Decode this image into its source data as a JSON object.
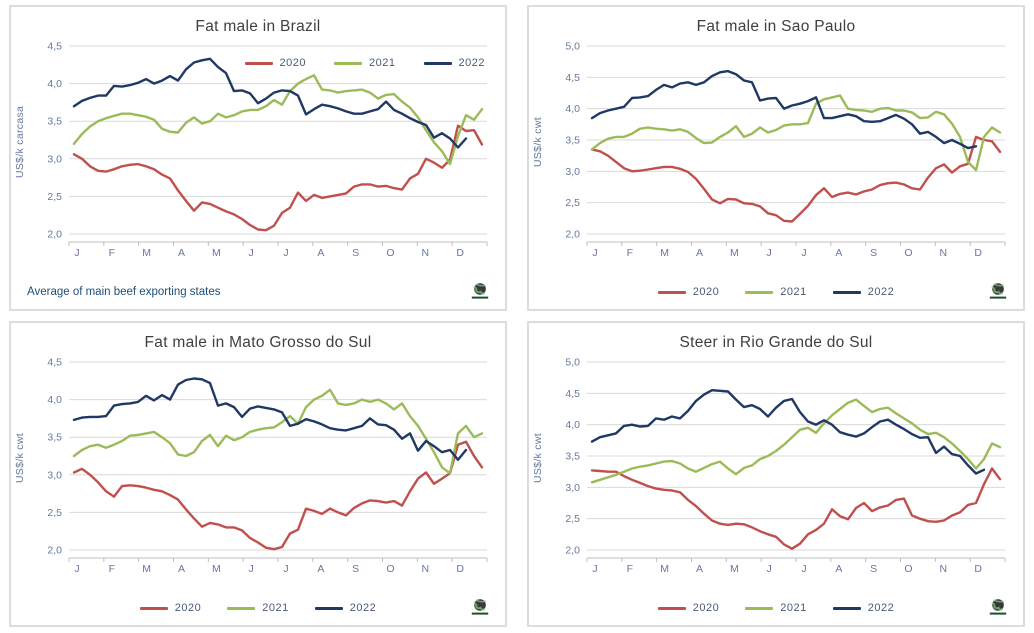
{
  "page": {
    "background": "#ffffff"
  },
  "colors": {
    "2020": "#c0504d",
    "2021": "#9bbb59",
    "2022": "#1f3864",
    "grid": "#d9d9d9",
    "axis": "#bfbfbf",
    "tick_label": "#64789c",
    "title": "#3f3f3f",
    "footnote": "#1f4e79",
    "legend_label": "#4a5a74"
  },
  "legend": {
    "labels": [
      "2020",
      "2021",
      "2022"
    ]
  },
  "chart_data": [
    {
      "type": "line",
      "title": "Fat male in Brazil",
      "ylabel": "US$/k carcasa",
      "ylim": [
        2.0,
        4.5
      ],
      "yticks": [
        "2,0",
        "2,5",
        "3,0",
        "3,5",
        "4,0",
        "4,5"
      ],
      "x_months": [
        "J",
        "F",
        "M",
        "A",
        "M",
        "J",
        "J",
        "A",
        "S",
        "O",
        "N",
        "D"
      ],
      "x_unit": "weeks",
      "grid": "horizontal",
      "legend_position": "inside-top-right",
      "footnote": "Average  of main beef exporting states",
      "series": [
        {
          "name": "2020",
          "values": [
            3.06,
            3.0,
            2.9,
            2.84,
            2.83,
            2.86,
            2.9,
            2.92,
            2.93,
            2.9,
            2.86,
            2.79,
            2.74,
            2.58,
            2.44,
            2.31,
            2.42,
            2.4,
            2.35,
            2.3,
            2.26,
            2.2,
            2.12,
            2.06,
            2.05,
            2.11,
            2.28,
            2.35,
            2.55,
            2.44,
            2.52,
            2.48,
            2.5,
            2.52,
            2.54,
            2.63,
            2.66,
            2.66,
            2.63,
            2.64,
            2.61,
            2.59,
            2.74,
            2.8,
            3.0,
            2.95,
            2.88,
            2.99,
            3.44,
            3.37,
            3.38,
            3.19
          ]
        },
        {
          "name": "2021",
          "values": [
            3.2,
            3.33,
            3.43,
            3.5,
            3.54,
            3.57,
            3.6,
            3.6,
            3.58,
            3.56,
            3.52,
            3.4,
            3.36,
            3.35,
            3.48,
            3.55,
            3.47,
            3.5,
            3.6,
            3.55,
            3.58,
            3.63,
            3.65,
            3.65,
            3.7,
            3.78,
            3.72,
            3.9,
            4.0,
            4.06,
            4.11,
            3.92,
            3.91,
            3.88,
            3.9,
            3.91,
            3.92,
            3.88,
            3.8,
            3.85,
            3.86,
            3.76,
            3.68,
            3.55,
            3.38,
            3.22,
            3.1,
            2.93,
            3.3,
            3.58,
            3.52,
            3.66
          ]
        },
        {
          "name": "2022",
          "values": [
            3.7,
            3.77,
            3.81,
            3.84,
            3.84,
            3.97,
            3.96,
            3.98,
            4.01,
            4.06,
            4.0,
            4.04,
            4.1,
            4.04,
            4.19,
            4.28,
            4.31,
            4.33,
            4.22,
            4.14,
            3.9,
            3.91,
            3.87,
            3.74,
            3.8,
            3.88,
            3.91,
            3.9,
            3.84,
            3.59,
            3.66,
            3.72,
            3.7,
            3.67,
            3.63,
            3.6,
            3.6,
            3.63,
            3.66,
            3.76,
            3.65,
            3.6,
            3.54,
            3.49,
            3.45,
            3.28,
            3.34,
            3.27,
            3.15,
            3.27
          ]
        }
      ]
    },
    {
      "type": "line",
      "title": "Fat male in Sao Paulo",
      "ylabel": "US$/k cwt",
      "ylim": [
        2.0,
        5.0
      ],
      "yticks": [
        "2,0",
        "2,5",
        "3,0",
        "3,5",
        "4,0",
        "4,5",
        "5,0"
      ],
      "x_months": [
        "J",
        "F",
        "M",
        "A",
        "M",
        "J",
        "J",
        "A",
        "S",
        "O",
        "N",
        "D"
      ],
      "x_unit": "weeks",
      "grid": "horizontal",
      "legend_position": "bottom",
      "footnote": "",
      "series": [
        {
          "name": "2020",
          "values": [
            3.35,
            3.32,
            3.25,
            3.15,
            3.05,
            3.0,
            3.01,
            3.03,
            3.05,
            3.07,
            3.07,
            3.04,
            2.99,
            2.88,
            2.72,
            2.55,
            2.49,
            2.56,
            2.55,
            2.49,
            2.48,
            2.44,
            2.33,
            2.3,
            2.21,
            2.2,
            2.32,
            2.45,
            2.62,
            2.73,
            2.59,
            2.64,
            2.66,
            2.63,
            2.68,
            2.71,
            2.78,
            2.81,
            2.82,
            2.79,
            2.73,
            2.71,
            2.9,
            3.05,
            3.11,
            2.98,
            3.08,
            3.12,
            3.55,
            3.5,
            3.48,
            3.31
          ]
        },
        {
          "name": "2021",
          "values": [
            3.35,
            3.45,
            3.52,
            3.55,
            3.55,
            3.6,
            3.68,
            3.7,
            3.68,
            3.67,
            3.65,
            3.67,
            3.63,
            3.53,
            3.45,
            3.46,
            3.55,
            3.62,
            3.72,
            3.55,
            3.6,
            3.7,
            3.62,
            3.66,
            3.73,
            3.75,
            3.75,
            3.77,
            4.08,
            4.15,
            4.18,
            4.21,
            4.0,
            3.98,
            3.97,
            3.95,
            4.0,
            4.01,
            3.97,
            3.97,
            3.94,
            3.85,
            3.86,
            3.95,
            3.91,
            3.76,
            3.55,
            3.15,
            3.02,
            3.55,
            3.7,
            3.62
          ]
        },
        {
          "name": "2022",
          "values": [
            3.85,
            3.93,
            3.97,
            4.0,
            4.03,
            4.17,
            4.18,
            4.2,
            4.3,
            4.38,
            4.34,
            4.4,
            4.42,
            4.38,
            4.42,
            4.52,
            4.58,
            4.6,
            4.55,
            4.45,
            4.42,
            4.13,
            4.16,
            4.17,
            4.0,
            4.05,
            4.08,
            4.12,
            4.18,
            3.85,
            3.85,
            3.88,
            3.91,
            3.88,
            3.8,
            3.79,
            3.8,
            3.85,
            3.9,
            3.84,
            3.75,
            3.6,
            3.63,
            3.55,
            3.45,
            3.5,
            3.44,
            3.37,
            3.4
          ]
        }
      ]
    },
    {
      "type": "line",
      "title": "Fat male in Mato Grosso do Sul",
      "ylabel": "US$/k cwt",
      "ylim": [
        2.0,
        4.5
      ],
      "yticks": [
        "2,0",
        "2,5",
        "3,0",
        "3,5",
        "4,0",
        "4,5"
      ],
      "x_months": [
        "J",
        "F",
        "M",
        "A",
        "M",
        "J",
        "J",
        "A",
        "S",
        "O",
        "N",
        "D"
      ],
      "x_unit": "weeks",
      "grid": "horizontal",
      "legend_position": "bottom",
      "footnote": "",
      "series": [
        {
          "name": "2020",
          "values": [
            3.03,
            3.08,
            3.0,
            2.9,
            2.78,
            2.71,
            2.85,
            2.86,
            2.85,
            2.83,
            2.8,
            2.78,
            2.73,
            2.67,
            2.54,
            2.42,
            2.31,
            2.36,
            2.34,
            2.3,
            2.3,
            2.26,
            2.16,
            2.1,
            2.03,
            2.01,
            2.04,
            2.22,
            2.27,
            2.55,
            2.52,
            2.48,
            2.55,
            2.5,
            2.46,
            2.56,
            2.62,
            2.66,
            2.65,
            2.63,
            2.65,
            2.59,
            2.78,
            2.95,
            3.03,
            2.88,
            2.95,
            3.02,
            3.4,
            3.44,
            3.25,
            3.1
          ]
        },
        {
          "name": "2021",
          "values": [
            3.25,
            3.33,
            3.38,
            3.4,
            3.36,
            3.4,
            3.45,
            3.52,
            3.53,
            3.55,
            3.57,
            3.5,
            3.42,
            3.27,
            3.25,
            3.3,
            3.45,
            3.53,
            3.38,
            3.52,
            3.46,
            3.5,
            3.57,
            3.6,
            3.62,
            3.63,
            3.7,
            3.78,
            3.68,
            3.9,
            4.0,
            4.05,
            4.13,
            3.95,
            3.93,
            3.95,
            4.0,
            3.97,
            4.0,
            3.95,
            3.87,
            3.95,
            3.78,
            3.65,
            3.48,
            3.3,
            3.1,
            3.02,
            3.55,
            3.65,
            3.5,
            3.55
          ]
        },
        {
          "name": "2022",
          "values": [
            3.73,
            3.76,
            3.77,
            3.77,
            3.78,
            3.92,
            3.94,
            3.95,
            3.97,
            4.05,
            3.99,
            4.06,
            4.0,
            4.2,
            4.26,
            4.28,
            4.27,
            4.22,
            3.92,
            3.95,
            3.9,
            3.77,
            3.88,
            3.91,
            3.89,
            3.87,
            3.83,
            3.65,
            3.68,
            3.74,
            3.71,
            3.67,
            3.62,
            3.6,
            3.59,
            3.62,
            3.65,
            3.75,
            3.67,
            3.66,
            3.6,
            3.48,
            3.55,
            3.32,
            3.45,
            3.38,
            3.3,
            3.33,
            3.2,
            3.33
          ]
        }
      ]
    },
    {
      "type": "line",
      "title": "Steer  in Rio Grande do Sul",
      "ylabel": "US$/k cwt",
      "ylim": [
        2.0,
        5.0
      ],
      "yticks": [
        "2,0",
        "2,5",
        "3,0",
        "3,5",
        "4,0",
        "4,5",
        "5,0"
      ],
      "x_months": [
        "J",
        "F",
        "M",
        "A",
        "M",
        "J",
        "J",
        "A",
        "S",
        "O",
        "N",
        "D"
      ],
      "x_unit": "weeks",
      "grid": "horizontal",
      "legend_position": "bottom",
      "footnote": "",
      "series": [
        {
          "name": "2020",
          "values": [
            3.27,
            3.26,
            3.25,
            3.25,
            3.18,
            3.12,
            3.07,
            3.02,
            2.98,
            2.96,
            2.95,
            2.92,
            2.8,
            2.7,
            2.58,
            2.47,
            2.42,
            2.4,
            2.42,
            2.41,
            2.36,
            2.3,
            2.25,
            2.21,
            2.09,
            2.02,
            2.1,
            2.25,
            2.32,
            2.42,
            2.65,
            2.54,
            2.49,
            2.67,
            2.75,
            2.62,
            2.68,
            2.71,
            2.8,
            2.82,
            2.55,
            2.5,
            2.46,
            2.45,
            2.47,
            2.55,
            2.6,
            2.72,
            2.75,
            3.05,
            3.3,
            3.13
          ]
        },
        {
          "name": "2021",
          "values": [
            3.08,
            3.12,
            3.16,
            3.2,
            3.25,
            3.3,
            3.33,
            3.35,
            3.38,
            3.41,
            3.42,
            3.38,
            3.3,
            3.25,
            3.31,
            3.37,
            3.41,
            3.3,
            3.21,
            3.31,
            3.35,
            3.45,
            3.5,
            3.58,
            3.68,
            3.8,
            3.92,
            3.95,
            3.87,
            4.02,
            4.15,
            4.25,
            4.35,
            4.4,
            4.3,
            4.2,
            4.25,
            4.27,
            4.18,
            4.1,
            4.02,
            3.92,
            3.85,
            3.87,
            3.8,
            3.7,
            3.58,
            3.45,
            3.3,
            3.45,
            3.7,
            3.64
          ]
        },
        {
          "name": "2022",
          "values": [
            3.73,
            3.8,
            3.83,
            3.86,
            3.98,
            4.0,
            3.97,
            3.98,
            4.1,
            4.08,
            4.13,
            4.1,
            4.22,
            4.38,
            4.48,
            4.55,
            4.54,
            4.53,
            4.4,
            4.28,
            4.31,
            4.25,
            4.13,
            4.27,
            4.38,
            4.41,
            4.2,
            4.05,
            4.0,
            4.07,
            4.0,
            3.88,
            3.84,
            3.81,
            3.86,
            3.96,
            4.05,
            4.08,
            4.0,
            3.93,
            3.85,
            3.79,
            3.8,
            3.55,
            3.65,
            3.53,
            3.5,
            3.35,
            3.22,
            3.28
          ]
        }
      ]
    }
  ]
}
